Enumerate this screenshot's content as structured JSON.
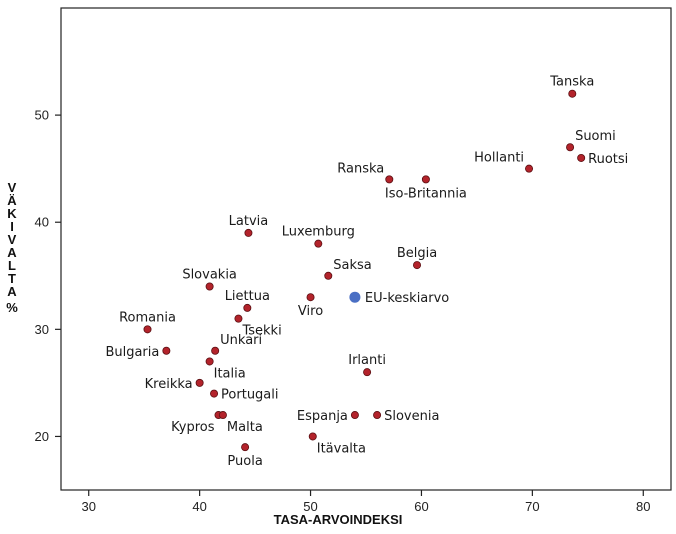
{
  "chart_data": {
    "type": "scatter",
    "title": "",
    "xlabel": "TASA-ARVOINDEKSI",
    "ylabel_letters": [
      "V",
      "Ä",
      "K",
      "I",
      "V",
      "A",
      "L",
      "T",
      "A",
      "%"
    ],
    "xlim": [
      27.5,
      82.5
    ],
    "ylim": [
      15,
      60
    ],
    "xticks": [
      "30",
      "40",
      "50",
      "60",
      "70",
      "80"
    ],
    "yticks": [
      "20",
      "30",
      "40",
      "50"
    ],
    "grid": false,
    "colors": {
      "country": "#b3232b",
      "average": "#4a6fc4"
    },
    "points": [
      {
        "label": "Tanska",
        "x": 73.6,
        "y": 52,
        "anchor": "middle",
        "pos": "above"
      },
      {
        "label": "Suomi",
        "x": 73.4,
        "y": 47,
        "anchor": "start",
        "pos": "above-right"
      },
      {
        "label": "Ruotsi",
        "x": 74.4,
        "y": 46,
        "anchor": "start",
        "pos": "right"
      },
      {
        "label": "Hollanti",
        "x": 69.7,
        "y": 45,
        "anchor": "end",
        "pos": "above-left"
      },
      {
        "label": "Ranska",
        "x": 57.1,
        "y": 44,
        "anchor": "end",
        "pos": "above-left"
      },
      {
        "label": "Iso-Britannia",
        "x": 60.4,
        "y": 44,
        "anchor": "middle",
        "pos": "below"
      },
      {
        "label": "Latvia",
        "x": 44.4,
        "y": 39,
        "anchor": "middle",
        "pos": "above"
      },
      {
        "label": "Luxemburg",
        "x": 50.7,
        "y": 38,
        "anchor": "middle",
        "pos": "above"
      },
      {
        "label": "Belgia",
        "x": 59.6,
        "y": 36,
        "anchor": "middle",
        "pos": "above"
      },
      {
        "label": "Saksa",
        "x": 51.6,
        "y": 35,
        "anchor": "start",
        "pos": "above-right"
      },
      {
        "label": "Slovakia",
        "x": 40.9,
        "y": 34,
        "anchor": "middle",
        "pos": "above"
      },
      {
        "label": "Liettua",
        "x": 44.3,
        "y": 32,
        "anchor": "middle",
        "pos": "above"
      },
      {
        "label": "Viro",
        "x": 50.0,
        "y": 33,
        "anchor": "middle",
        "pos": "below"
      },
      {
        "label": "Tsekki",
        "x": 43.5,
        "y": 31,
        "anchor": "start",
        "pos": "below-right"
      },
      {
        "label": "Romania",
        "x": 35.3,
        "y": 30,
        "anchor": "middle",
        "pos": "above"
      },
      {
        "label": "Bulgaria",
        "x": 37.0,
        "y": 28,
        "anchor": "end",
        "pos": "left"
      },
      {
        "label": "Unkari",
        "x": 41.4,
        "y": 28,
        "anchor": "start",
        "pos": "above-right"
      },
      {
        "label": "Italia",
        "x": 40.9,
        "y": 27,
        "anchor": "start",
        "pos": "below-right"
      },
      {
        "label": "Irlanti",
        "x": 55.1,
        "y": 26,
        "anchor": "middle",
        "pos": "above"
      },
      {
        "label": "Kreikka",
        "x": 40.0,
        "y": 25,
        "anchor": "end",
        "pos": "left"
      },
      {
        "label": "Portugali",
        "x": 41.3,
        "y": 24,
        "anchor": "start",
        "pos": "right"
      },
      {
        "label": "Kypros",
        "x": 41.7,
        "y": 22,
        "anchor": "end",
        "pos": "below-left"
      },
      {
        "label": "Malta",
        "x": 42.1,
        "y": 22,
        "anchor": "start",
        "pos": "below-right"
      },
      {
        "label": "Espanja",
        "x": 54.0,
        "y": 22,
        "anchor": "end",
        "pos": "left"
      },
      {
        "label": "Slovenia",
        "x": 56.0,
        "y": 22,
        "anchor": "start",
        "pos": "right"
      },
      {
        "label": "Itävalta",
        "x": 50.2,
        "y": 20,
        "anchor": "start",
        "pos": "below-right"
      },
      {
        "label": "Puola",
        "x": 44.1,
        "y": 19,
        "anchor": "middle",
        "pos": "below"
      }
    ],
    "average": {
      "label": "EU-keskiarvo",
      "x": 54.0,
      "y": 33
    }
  }
}
